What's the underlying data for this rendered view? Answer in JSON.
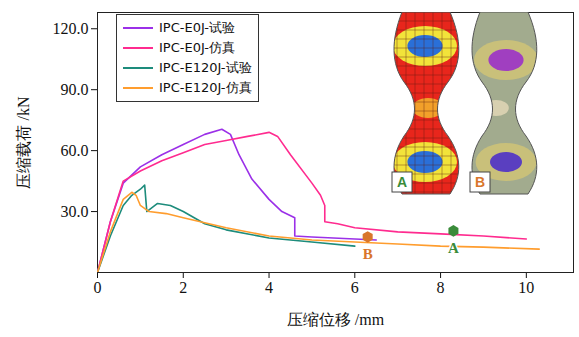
{
  "chart_data": {
    "type": "line",
    "x_label": "压缩位移 /mm",
    "y_label": "压缩载荷 /kN",
    "xlim": [
      0,
      11.1
    ],
    "ylim": [
      0,
      128
    ],
    "xticks": [
      0,
      2,
      4,
      6,
      8,
      10
    ],
    "yticks": [
      {
        "value": 30,
        "label": "30.0"
      },
      {
        "value": 60,
        "label": "60.0"
      },
      {
        "value": 90,
        "label": "90.0"
      },
      {
        "value": 120,
        "label": "120.0"
      }
    ],
    "legend": "top-left",
    "series": [
      {
        "name": "IPC-E0J-试验",
        "color": "#9b30e8",
        "x": [
          0,
          0.3,
          0.6,
          1.0,
          1.5,
          2.0,
          2.5,
          2.9,
          3.1,
          3.3,
          3.6,
          4.0,
          4.3,
          4.6,
          4.6,
          5.0,
          6.0,
          6.5
        ],
        "values": [
          0,
          25,
          44,
          52,
          58,
          63,
          68,
          70.5,
          68,
          58,
          46,
          36,
          30,
          27,
          18,
          17.5,
          16.5,
          16
        ]
      },
      {
        "name": "IPC-E0J-仿真",
        "color": "#ff2b8f",
        "x": [
          0,
          0.3,
          0.6,
          1.0,
          1.5,
          2.0,
          2.5,
          3.0,
          3.5,
          4.0,
          4.2,
          4.5,
          5.0,
          5.2,
          5.3,
          5.3,
          5.6,
          6.0,
          7.0,
          8.0,
          9.0,
          10.0
        ],
        "values": [
          0,
          25,
          45,
          50,
          55,
          59,
          63,
          65,
          67,
          69,
          67,
          58,
          44,
          38,
          33,
          25,
          24,
          22,
          20,
          19,
          18,
          16.5
        ]
      },
      {
        "name": "IPC-E120J-试验",
        "color": "#1d8c7c",
        "x": [
          0,
          0.3,
          0.6,
          0.8,
          1.0,
          1.1,
          1.15,
          1.4,
          1.7,
          2.0,
          2.5,
          3.0,
          4.0,
          5.0,
          6.0
        ],
        "values": [
          0,
          18,
          33,
          38,
          41,
          43,
          30,
          34,
          33,
          30,
          24,
          21,
          17,
          15,
          13
        ]
      },
      {
        "name": "IPC-E120J-仿真",
        "color": "#ff9d2e",
        "x": [
          0,
          0.3,
          0.6,
          0.8,
          0.9,
          1.0,
          1.2,
          1.6,
          2.0,
          3.0,
          4.0,
          5.0,
          6.0,
          7.0,
          8.0,
          9.0,
          10.3
        ],
        "values": [
          0,
          20,
          36,
          39.5,
          38,
          33,
          30,
          29,
          27,
          22,
          18,
          16,
          15,
          14,
          13,
          12.5,
          11.5
        ]
      }
    ],
    "annotations": [
      {
        "text": "A",
        "x": 8.3,
        "y": 20.5,
        "color": "#3a8c3a",
        "marker": "hexagon"
      },
      {
        "text": "B",
        "x": 6.3,
        "y": 17.5,
        "color": "#d9762b",
        "marker": "hexagon"
      }
    ],
    "insets": [
      {
        "label": "A",
        "color": "#3a8c3a"
      },
      {
        "label": "B",
        "color": "#d9762b"
      }
    ]
  }
}
